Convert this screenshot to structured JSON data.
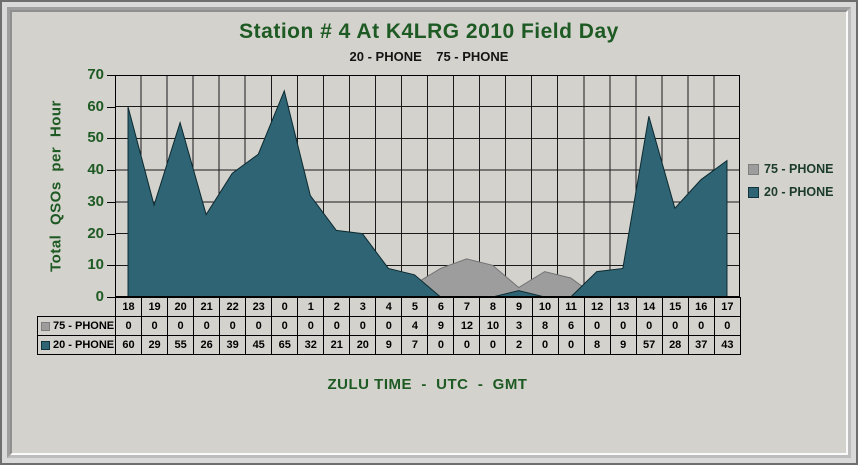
{
  "chart": {
    "title": "Station # 4 At K4LRG 2010 Field Day",
    "subtitle": "20 - PHONE    75 - PHONE",
    "y_axis_label": "Total QSOs per Hour",
    "x_axis_label": "ZULU TIME  -  UTC  -  GMT",
    "y_ticks": [
      70,
      60,
      50,
      40,
      30,
      20,
      10,
      0
    ],
    "legend": [
      {
        "label": "75 - PHONE",
        "swatch": "#9d9d9d",
        "swatch_border": "#7e7e7e"
      },
      {
        "label": "20 - PHONE",
        "swatch": "#2e6473",
        "swatch_border": "#12323c"
      }
    ],
    "colors": {
      "background": "#d4d2cd",
      "title_text": "#1e5a23",
      "grid": "#1a1a1a",
      "series_75_phone": "#9d9d9d",
      "series_20_phone": "#2e6473"
    }
  },
  "chart_data": {
    "type": "area",
    "title": "Station # 4 At K4LRG 2010 Field Day",
    "subtitle": "20 - PHONE    75 - PHONE",
    "xlabel": "ZULU TIME - UTC - GMT",
    "ylabel": "Total QSOs per Hour",
    "ylim": [
      0,
      70
    ],
    "y_tick_step": 10,
    "grid": true,
    "legend_position": "right",
    "data_table_shown": true,
    "categories": [
      "18",
      "19",
      "20",
      "21",
      "22",
      "23",
      "0",
      "1",
      "2",
      "3",
      "4",
      "5",
      "6",
      "7",
      "8",
      "9",
      "10",
      "11",
      "12",
      "13",
      "14",
      "15",
      "16",
      "17"
    ],
    "series": [
      {
        "name": "75 - PHONE",
        "color": "#9d9d9d",
        "edge": "#737373",
        "values": [
          0,
          0,
          0,
          0,
          0,
          0,
          0,
          0,
          0,
          0,
          0,
          4,
          9,
          12,
          10,
          3,
          8,
          6,
          0,
          0,
          0,
          0,
          0,
          0
        ]
      },
      {
        "name": "20 - PHONE",
        "color": "#2e6473",
        "edge": "#0c2a31",
        "values": [
          60,
          29,
          55,
          26,
          39,
          45,
          65,
          32,
          21,
          20,
          9,
          7,
          0,
          0,
          0,
          2,
          0,
          0,
          8,
          9,
          57,
          28,
          37,
          43
        ]
      }
    ]
  }
}
